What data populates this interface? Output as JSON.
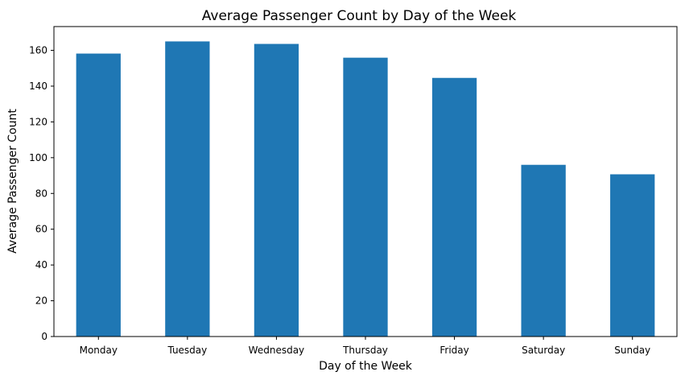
{
  "chart_data": {
    "type": "bar",
    "title": "Average Passenger Count by Day of the Week",
    "xlabel": "Day of the Week",
    "ylabel": "Average Passenger Count",
    "categories": [
      "Monday",
      "Tuesday",
      "Wednesday",
      "Thursday",
      "Friday",
      "Saturday",
      "Sunday"
    ],
    "values": [
      158.2,
      165.0,
      163.6,
      155.9,
      144.6,
      96.0,
      90.7
    ],
    "ylim": [
      0,
      173.3
    ],
    "yticks": [
      0,
      20,
      40,
      60,
      80,
      100,
      120,
      140,
      160
    ],
    "grid": false,
    "legend": "none",
    "bar_color": "#1f77b4"
  }
}
